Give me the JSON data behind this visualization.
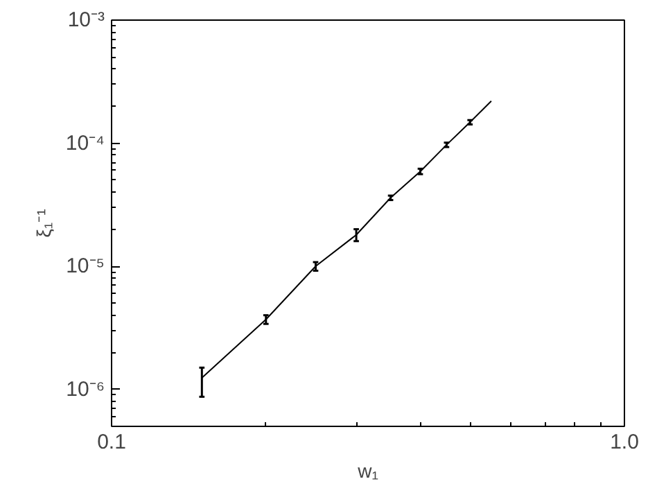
{
  "chart_data": {
    "type": "line",
    "xlabel": "w₁",
    "ylabel": "ξ₁⁻¹",
    "log": "xy",
    "grid": false,
    "marker": "none",
    "line_style": "solid",
    "xlim": [
      0.1,
      1.0
    ],
    "xticks": [
      0.1,
      {
        "value": 1.0,
        "label": "1.0"
      }
    ],
    "ylim": [
      5e-07,
      0.001
    ],
    "yticks": [
      {
        "value": 1e-06,
        "label": "10⁻⁶"
      },
      {
        "value": 1e-05,
        "label": "10⁻⁵"
      },
      {
        "value": 0.0001,
        "label": "10⁻⁴"
      },
      {
        "value": 0.001,
        "label": "10⁻³"
      }
    ],
    "x": [
      0.15,
      0.2,
      0.25,
      0.3,
      0.35,
      0.4,
      0.45,
      0.5,
      0.55
    ],
    "series": [
      {
        "color": "#000000",
        "values": [
          1.24e-06,
          3.7e-06,
          1e-05,
          1.8e-05,
          3.6e-05,
          5.9e-05,
          9.7e-05,
          0.000148,
          0.00022
        ],
        "errors": [
          [
            8.7e-07,
            1.5e-06
          ],
          3e-07,
          8e-07,
          2e-06,
          1.5e-06,
          3e-06,
          4e-06,
          6e-06,
          null
        ]
      }
    ]
  }
}
